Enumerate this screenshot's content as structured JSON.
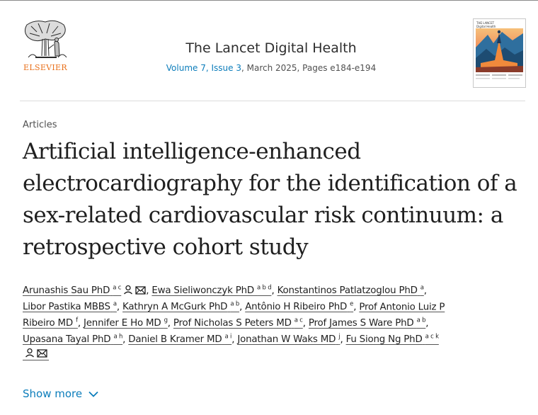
{
  "publisher": {
    "name": "ELSEVIER"
  },
  "journal": {
    "title": "The Lancet Digital Health",
    "volume_issue": "Volume 7, Issue 3",
    "date_pages": ", March 2025, Pages e184-e194",
    "cover_title_line1": "THE LANCET",
    "cover_title_line2": "Digital Health"
  },
  "article": {
    "type": "Articles",
    "title": "Artificial intelligence-enhanced electrocardiography for the identification of a sex-related cardiovascular risk continuum: a retrospective cohort study"
  },
  "authors": [
    {
      "name": "Arunashis Sau PhD",
      "aff": "a c"
    },
    {
      "name": "Ewa Sieliwonczyk PhD",
      "aff": "a b d"
    },
    {
      "name": "Konstantinos Patlatzoglou PhD",
      "aff": "a"
    },
    {
      "name": "Libor Pastika MBBS",
      "aff": "a"
    },
    {
      "name": "Kathryn A McGurk PhD",
      "aff": "a b"
    },
    {
      "name": "Antônio H Ribeiro PhD",
      "aff": "e"
    },
    {
      "name_part1": "Prof Antonio Luiz P",
      "name_part2": "Ribeiro MD",
      "aff": "f"
    },
    {
      "name": "Jennifer E Ho MD",
      "aff": "g"
    },
    {
      "name": "Prof Nicholas S Peters MD",
      "aff": "a c"
    },
    {
      "name": "Prof James S Ware PhD",
      "aff": "a b"
    },
    {
      "name": "Upasana Tayal PhD",
      "aff": "a h"
    },
    {
      "name": "Daniel B Kramer MD",
      "aff": "a i"
    },
    {
      "name": "Jonathan W Waks MD",
      "aff": "j"
    },
    {
      "name": "Fu Siong Ng PhD",
      "aff": "a c k"
    }
  ],
  "icons": {
    "person": "person-icon",
    "email": "email-icon",
    "chevron": "chevron-down-icon"
  },
  "colors": {
    "link": "#0c7dbb",
    "elsevier_orange": "#e9711c"
  },
  "show_more": {
    "label": "Show more"
  }
}
